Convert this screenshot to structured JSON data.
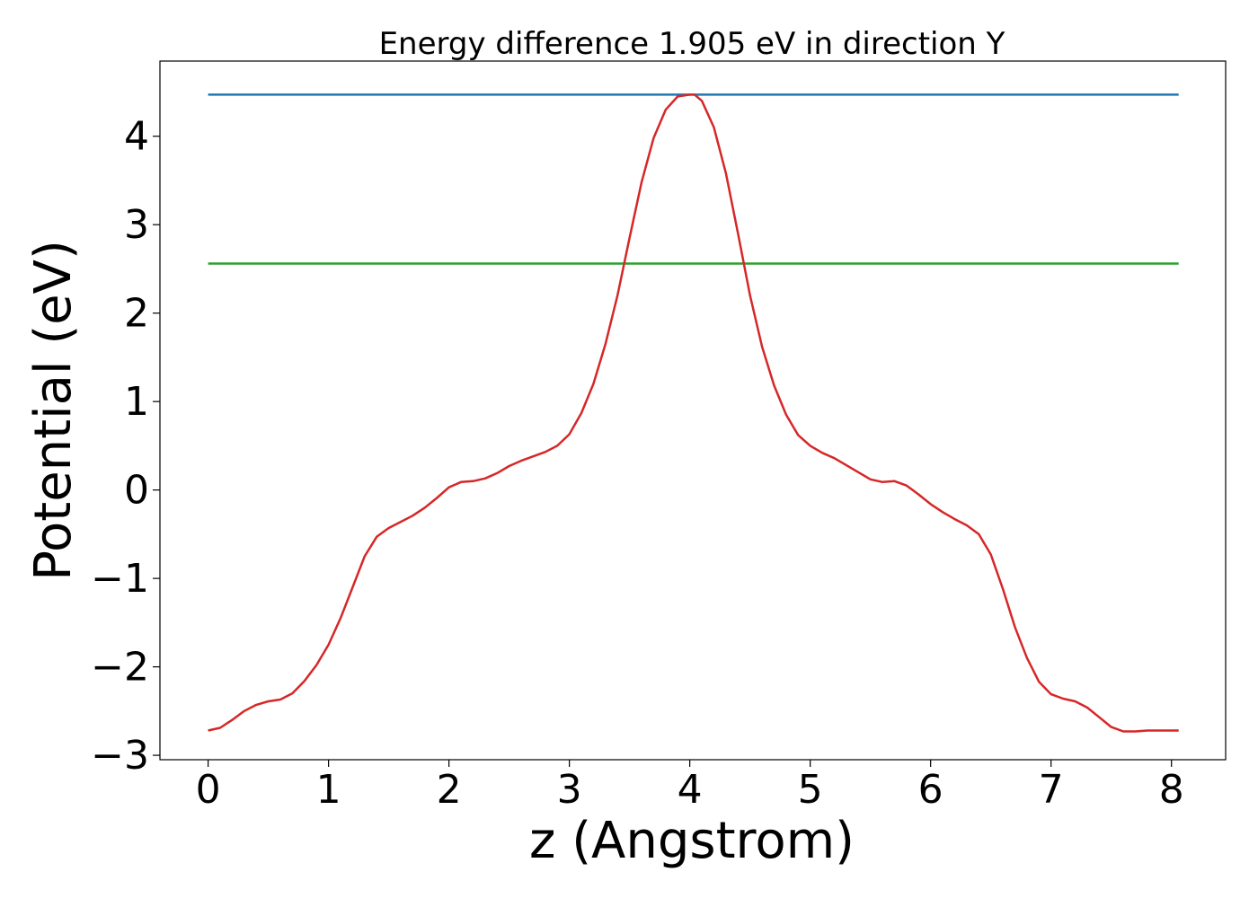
{
  "chart_data": {
    "type": "line",
    "title": "Energy difference 1.905 eV in direction Y",
    "xlabel": "z (Angstrom)",
    "ylabel": "Potential (eV)",
    "xlim": [
      -0.4,
      8.45
    ],
    "ylim": [
      -3.05,
      4.85
    ],
    "xticks": [
      0,
      1,
      2,
      3,
      4,
      5,
      6,
      7,
      8
    ],
    "yticks": [
      -3,
      -2,
      -1,
      0,
      1,
      2,
      3,
      4
    ],
    "xtick_labels": [
      "0",
      "1",
      "2",
      "3",
      "4",
      "5",
      "6",
      "7",
      "8"
    ],
    "ytick_labels": [
      "−3",
      "−2",
      "−1",
      "0",
      "1",
      "2",
      "3",
      "4"
    ],
    "grid": false,
    "series": [
      {
        "color": "#d62728",
        "x": [
          0.0,
          0.1,
          0.2,
          0.3,
          0.4,
          0.5,
          0.6,
          0.7,
          0.8,
          0.9,
          1.0,
          1.1,
          1.2,
          1.3,
          1.4,
          1.5,
          1.6,
          1.7,
          1.8,
          1.9,
          2.0,
          2.1,
          2.2,
          2.3,
          2.4,
          2.5,
          2.6,
          2.7,
          2.8,
          2.9,
          3.0,
          3.1,
          3.2,
          3.3,
          3.4,
          3.5,
          3.6,
          3.7,
          3.8,
          3.9,
          4.0,
          4.04,
          4.1,
          4.2,
          4.3,
          4.4,
          4.5,
          4.6,
          4.7,
          4.8,
          4.9,
          5.0,
          5.1,
          5.2,
          5.3,
          5.4,
          5.5,
          5.6,
          5.7,
          5.8,
          5.9,
          6.0,
          6.1,
          6.2,
          6.3,
          6.4,
          6.5,
          6.6,
          6.7,
          6.8,
          6.9,
          7.0,
          7.1,
          7.2,
          7.3,
          7.4,
          7.5,
          7.6,
          7.7,
          7.8,
          7.9,
          8.0,
          8.06
        ],
        "y": [
          -2.72,
          -2.69,
          -2.6,
          -2.5,
          -2.43,
          -2.39,
          -2.37,
          -2.3,
          -2.16,
          -1.98,
          -1.75,
          -1.45,
          -1.1,
          -0.75,
          -0.53,
          -0.43,
          -0.36,
          -0.29,
          -0.2,
          -0.09,
          0.03,
          0.09,
          0.1,
          0.13,
          0.19,
          0.27,
          0.33,
          0.38,
          0.43,
          0.5,
          0.63,
          0.87,
          1.2,
          1.65,
          2.2,
          2.85,
          3.48,
          3.98,
          4.3,
          4.45,
          4.47,
          4.47,
          4.4,
          4.1,
          3.58,
          2.9,
          2.2,
          1.62,
          1.18,
          0.85,
          0.62,
          0.5,
          0.42,
          0.36,
          0.28,
          0.2,
          0.12,
          0.09,
          0.1,
          0.05,
          -0.05,
          -0.16,
          -0.25,
          -0.33,
          -0.4,
          -0.5,
          -0.73,
          -1.12,
          -1.55,
          -1.9,
          -2.17,
          -2.31,
          -2.36,
          -2.39,
          -2.46,
          -2.57,
          -2.68,
          -2.73,
          -2.73,
          -2.72,
          -2.72,
          -2.72,
          -2.72
        ]
      },
      {
        "color": "#1f77b4",
        "x": [
          0.0,
          8.06
        ],
        "y": [
          4.47,
          4.47
        ]
      },
      {
        "color": "#2ca02c",
        "x": [
          0.0,
          8.06
        ],
        "y": [
          2.56,
          2.56
        ]
      }
    ]
  }
}
